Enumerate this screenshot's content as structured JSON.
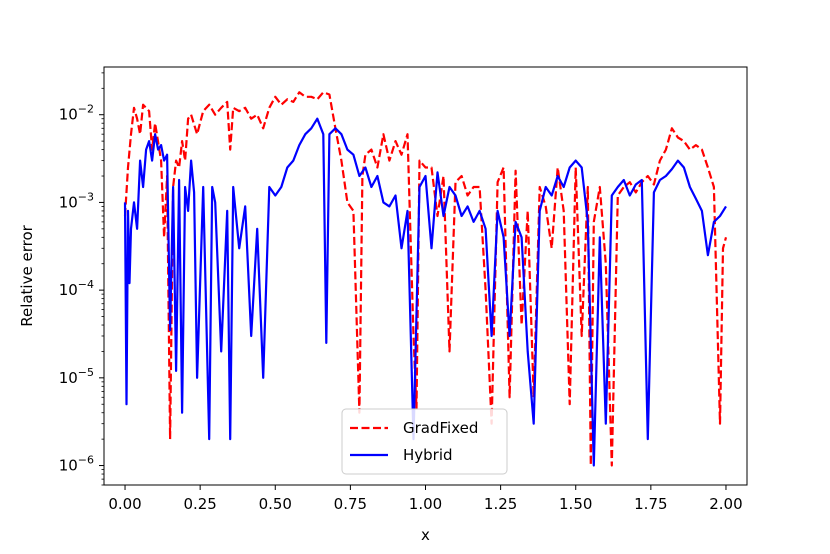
{
  "chart_data": {
    "type": "line",
    "title": "",
    "xlabel": "x",
    "ylabel": "Relative error",
    "xscale": "linear",
    "yscale": "log",
    "xlim": [
      -0.07,
      2.07
    ],
    "ylim": [
      6e-07,
      0.035
    ],
    "grid": false,
    "legend_position": "bottom-center",
    "x_ticks": [
      {
        "value": 0.0,
        "label": "0.00"
      },
      {
        "value": 0.25,
        "label": "0.25"
      },
      {
        "value": 0.5,
        "label": "0.50"
      },
      {
        "value": 0.75,
        "label": "0.75"
      },
      {
        "value": 1.0,
        "label": "1.00"
      },
      {
        "value": 1.25,
        "label": "1.25"
      },
      {
        "value": 1.5,
        "label": "1.50"
      },
      {
        "value": 1.75,
        "label": "1.75"
      },
      {
        "value": 2.0,
        "label": "2.00"
      }
    ],
    "y_ticks": [
      {
        "value": 0.01,
        "base": "10",
        "exp": "−2"
      },
      {
        "value": 0.001,
        "base": "10",
        "exp": "−3"
      },
      {
        "value": 0.0001,
        "base": "10",
        "exp": "−4"
      },
      {
        "value": 1e-05,
        "base": "10",
        "exp": "−5"
      },
      {
        "value": 1e-06,
        "base": "10",
        "exp": "−6"
      }
    ],
    "series": [
      {
        "name": "GradFixed",
        "color": "#ff0000",
        "dash": "dashed",
        "x": [
          0.0,
          0.01,
          0.02,
          0.03,
          0.04,
          0.05,
          0.06,
          0.08,
          0.09,
          0.1,
          0.12,
          0.13,
          0.14,
          0.15,
          0.16,
          0.17,
          0.18,
          0.19,
          0.2,
          0.21,
          0.22,
          0.24,
          0.26,
          0.28,
          0.3,
          0.32,
          0.34,
          0.35,
          0.36,
          0.38,
          0.4,
          0.42,
          0.44,
          0.46,
          0.48,
          0.5,
          0.52,
          0.54,
          0.56,
          0.58,
          0.6,
          0.62,
          0.64,
          0.66,
          0.68,
          0.7,
          0.72,
          0.74,
          0.76,
          0.78,
          0.79,
          0.8,
          0.82,
          0.84,
          0.86,
          0.88,
          0.9,
          0.92,
          0.94,
          0.96,
          0.97,
          0.98,
          1.0,
          1.02,
          1.04,
          1.06,
          1.08,
          1.1,
          1.12,
          1.14,
          1.16,
          1.18,
          1.2,
          1.22,
          1.24,
          1.26,
          1.28,
          1.3,
          1.32,
          1.34,
          1.36,
          1.38,
          1.4,
          1.42,
          1.44,
          1.46,
          1.48,
          1.5,
          1.52,
          1.54,
          1.55,
          1.56,
          1.58,
          1.6,
          1.62,
          1.64,
          1.66,
          1.68,
          1.7,
          1.72,
          1.74,
          1.76,
          1.78,
          1.8,
          1.82,
          1.84,
          1.86,
          1.88,
          1.9,
          1.92,
          1.94,
          1.96,
          1.98,
          1.99,
          2.0
        ],
        "y": [
          0.0007,
          0.0025,
          0.006,
          0.012,
          0.009,
          0.006,
          0.013,
          0.011,
          0.004,
          0.008,
          0.003,
          0.0004,
          0.002,
          2e-06,
          0.0015,
          0.003,
          0.0025,
          0.005,
          0.003,
          0.009,
          0.01,
          0.006,
          0.011,
          0.013,
          0.01,
          0.012,
          0.014,
          0.004,
          0.012,
          0.011,
          0.012,
          0.009,
          0.01,
          0.007,
          0.012,
          0.016,
          0.013,
          0.015,
          0.014,
          0.018,
          0.016,
          0.016,
          0.015,
          0.018,
          0.017,
          0.007,
          0.003,
          0.001,
          0.0008,
          4e-06,
          0.002,
          0.0035,
          0.004,
          0.0025,
          0.006,
          0.003,
          0.005,
          0.0035,
          0.006,
          3e-05,
          4.5e-06,
          0.003,
          0.0025,
          0.0025,
          0.0007,
          0.002,
          2e-05,
          0.0017,
          0.002,
          0.0012,
          0.0015,
          0.0015,
          0.0001,
          3e-06,
          0.0017,
          0.0025,
          6e-06,
          0.0023,
          4e-05,
          0.0008,
          6e-06,
          0.0015,
          0.0009,
          0.0003,
          0.0025,
          0.0008,
          5e-06,
          0.0025,
          3e-05,
          0.0015,
          1e-06,
          0.0006,
          0.0015,
          0.0002,
          1e-06,
          0.0012,
          0.0015,
          0.0017,
          0.0013,
          0.0017,
          0.002,
          0.0016,
          0.003,
          0.004,
          0.007,
          0.0055,
          0.005,
          0.004,
          0.0045,
          0.004,
          0.0025,
          0.0015,
          3e-06,
          0.0003,
          0.0004
        ]
      },
      {
        "name": "Hybrid",
        "color": "#0000ff",
        "dash": "solid",
        "x": [
          0.0,
          0.005,
          0.01,
          0.015,
          0.02,
          0.03,
          0.04,
          0.05,
          0.06,
          0.07,
          0.08,
          0.09,
          0.1,
          0.11,
          0.12,
          0.13,
          0.14,
          0.15,
          0.16,
          0.17,
          0.18,
          0.19,
          0.2,
          0.21,
          0.22,
          0.23,
          0.24,
          0.26,
          0.28,
          0.29,
          0.3,
          0.32,
          0.34,
          0.35,
          0.36,
          0.38,
          0.4,
          0.42,
          0.44,
          0.46,
          0.48,
          0.5,
          0.52,
          0.54,
          0.56,
          0.58,
          0.6,
          0.62,
          0.64,
          0.66,
          0.67,
          0.68,
          0.7,
          0.72,
          0.74,
          0.76,
          0.78,
          0.8,
          0.82,
          0.84,
          0.86,
          0.88,
          0.9,
          0.92,
          0.94,
          0.96,
          0.98,
          1.0,
          1.02,
          1.04,
          1.06,
          1.08,
          1.1,
          1.12,
          1.14,
          1.16,
          1.18,
          1.2,
          1.22,
          1.24,
          1.26,
          1.28,
          1.3,
          1.32,
          1.34,
          1.36,
          1.38,
          1.4,
          1.42,
          1.44,
          1.46,
          1.48,
          1.5,
          1.52,
          1.54,
          1.56,
          1.58,
          1.6,
          1.62,
          1.64,
          1.66,
          1.68,
          1.7,
          1.72,
          1.74,
          1.76,
          1.78,
          1.8,
          1.82,
          1.84,
          1.86,
          1.88,
          1.9,
          1.92,
          1.94,
          1.96,
          1.98,
          2.0
        ],
        "y": [
          0.001,
          5e-06,
          0.0008,
          0.00012,
          0.0005,
          0.001,
          0.0005,
          0.003,
          0.0015,
          0.004,
          0.005,
          0.003,
          0.006,
          0.004,
          0.0045,
          0.003,
          0.0035,
          3.5e-05,
          0.0015,
          1.2e-05,
          0.0018,
          4e-06,
          0.0015,
          0.0008,
          0.003,
          0.0013,
          1e-05,
          0.0015,
          2e-06,
          0.0015,
          0.001,
          2e-05,
          0.0008,
          2e-06,
          0.0015,
          0.0003,
          0.0009,
          3e-05,
          0.0005,
          1e-05,
          0.0015,
          0.0012,
          0.0015,
          0.0025,
          0.003,
          0.0045,
          0.006,
          0.007,
          0.009,
          0.006,
          2.5e-05,
          0.006,
          0.007,
          0.006,
          0.004,
          0.0035,
          0.002,
          0.0025,
          0.0015,
          0.002,
          0.001,
          0.0009,
          0.0012,
          0.0003,
          0.0008,
          2e-06,
          0.0015,
          0.002,
          0.0003,
          0.0022,
          0.0007,
          0.0015,
          0.0012,
          0.0007,
          0.0009,
          0.0006,
          0.0008,
          0.0005,
          3e-05,
          0.0008,
          0.0004,
          3e-05,
          0.0006,
          0.0004,
          2e-05,
          3e-06,
          0.0008,
          0.0015,
          0.0012,
          0.002,
          0.0015,
          0.0025,
          0.003,
          0.0025,
          0.0006,
          1e-06,
          0.0004,
          3e-06,
          0.0012,
          0.0015,
          0.0018,
          0.0012,
          0.0016,
          0.0018,
          2e-06,
          0.0013,
          0.0018,
          0.002,
          0.0024,
          0.003,
          0.0025,
          0.0015,
          0.0011,
          0.0008,
          0.00025,
          0.0006,
          0.0007,
          0.0009
        ]
      }
    ]
  }
}
